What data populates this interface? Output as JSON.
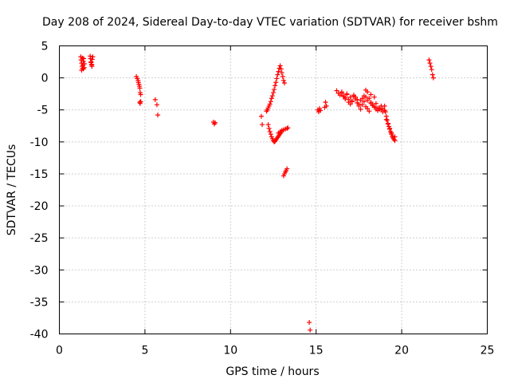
{
  "chart_data": {
    "type": "scatter",
    "title": "Day 208 of 2024, Sidereal Day-to-day VTEC variation (SDTVAR) for receiver bshm",
    "xlabel": "GPS time / hours",
    "ylabel": "SDTVAR / TECUs",
    "xlim": [
      0,
      25
    ],
    "ylim": [
      -40,
      5
    ],
    "xticks": [
      0,
      5,
      10,
      15,
      20,
      25
    ],
    "yticks": [
      5,
      0,
      -5,
      -10,
      -15,
      -20,
      -25,
      -30,
      -35,
      -40
    ],
    "grid": true,
    "marker": "+",
    "color": "#ff0000",
    "series": [
      {
        "name": "SDTVAR",
        "x": [
          1.25,
          1.27,
          1.3,
          1.32,
          1.35,
          1.38,
          1.4,
          1.42,
          1.45,
          1.47,
          1.3,
          1.35,
          1.4,
          1.8,
          1.82,
          1.85,
          1.88,
          1.9,
          1.92,
          1.95,
          1.85,
          1.9,
          4.5,
          4.55,
          4.6,
          4.62,
          4.65,
          4.68,
          4.7,
          4.72,
          4.75,
          4.7,
          4.72,
          4.75,
          5.6,
          5.7,
          5.75,
          9.0,
          9.05,
          9.1,
          11.8,
          11.85,
          12.1,
          12.15,
          12.2,
          12.25,
          12.3,
          12.35,
          12.4,
          12.45,
          12.5,
          12.55,
          12.6,
          12.65,
          12.7,
          12.75,
          12.8,
          12.85,
          12.9,
          12.95,
          13.0,
          13.05,
          13.1,
          13.15,
          12.2,
          12.25,
          12.3,
          12.35,
          12.4,
          12.45,
          12.5,
          12.55,
          12.6,
          12.65,
          12.7,
          12.75,
          12.8,
          12.85,
          12.9,
          12.95,
          13.0,
          12.8,
          12.9,
          13.0,
          13.1,
          13.2,
          13.3,
          13.35,
          13.1,
          13.15,
          13.2,
          13.25,
          13.3,
          14.6,
          14.65,
          15.1,
          15.15,
          15.2,
          15.25,
          15.5,
          15.55,
          15.6,
          16.2,
          16.3,
          16.4,
          16.5,
          16.6,
          16.7,
          16.8,
          16.9,
          17.0,
          17.1,
          17.2,
          17.3,
          17.4,
          17.5,
          17.6,
          17.7,
          17.8,
          17.9,
          18.0,
          18.1,
          18.2,
          18.3,
          18.4,
          18.5,
          18.6,
          18.7,
          18.8,
          18.9,
          16.5,
          16.6,
          16.7,
          16.8,
          16.9,
          17.0,
          17.1,
          17.2,
          17.3,
          17.4,
          17.5,
          17.6,
          17.7,
          17.8,
          17.9,
          18.0,
          18.1,
          18.2,
          18.3,
          18.4,
          18.5,
          18.6,
          18.7,
          18.8,
          18.9,
          19.0,
          17.9,
          18.0,
          18.2,
          18.4,
          19.0,
          19.05,
          19.1,
          19.15,
          19.2,
          19.25,
          19.3,
          19.35,
          19.4,
          19.45,
          19.5,
          19.55,
          19.6,
          19.1,
          19.2,
          19.3,
          19.4,
          19.5,
          19.6,
          21.6,
          21.65,
          21.7,
          21.75,
          21.8,
          21.85
        ],
        "y": [
          3.3,
          2.8,
          2.3,
          1.8,
          1.5,
          2.0,
          2.6,
          3.0,
          1.6,
          2.2,
          1.2,
          3.1,
          1.4,
          3.4,
          3.0,
          2.5,
          2.1,
          1.8,
          2.9,
          3.3,
          2.4,
          2.0,
          0.2,
          -0.1,
          -0.4,
          -0.7,
          -1.0,
          -1.3,
          -1.6,
          -2.3,
          -2.6,
          -3.8,
          -4.0,
          -3.7,
          -3.4,
          -4.2,
          -5.8,
          -6.9,
          -7.2,
          -7.0,
          -6.0,
          -7.3,
          -5.2,
          -5.0,
          -4.7,
          -4.4,
          -4.1,
          -3.7,
          -3.2,
          -2.8,
          -2.3,
          -1.8,
          -1.2,
          -0.7,
          -0.1,
          0.5,
          1.0,
          1.5,
          1.9,
          1.4,
          0.8,
          0.2,
          -0.4,
          -0.8,
          -7.3,
          -7.9,
          -8.4,
          -8.8,
          -9.2,
          -9.5,
          -9.8,
          -10.0,
          -9.9,
          -9.7,
          -9.5,
          -9.3,
          -9.1,
          -8.9,
          -8.7,
          -8.5,
          -8.3,
          -8.6,
          -8.4,
          -8.2,
          -8.1,
          -8.0,
          -7.9,
          -7.8,
          -15.3,
          -15.0,
          -14.7,
          -14.5,
          -14.2,
          -38.2,
          -39.4,
          -5.0,
          -5.3,
          -4.8,
          -5.1,
          -4.6,
          -3.8,
          -4.4,
          -2.0,
          -2.4,
          -2.7,
          -2.2,
          -2.9,
          -3.3,
          -2.5,
          -3.8,
          -4.1,
          -3.6,
          -2.7,
          -3.0,
          -3.4,
          -4.4,
          -4.9,
          -4.2,
          -3.7,
          -4.5,
          -4.8,
          -5.2,
          -4.0,
          -4.3,
          -4.6,
          -4.9,
          -5.1,
          -4.7,
          -5.0,
          -5.3,
          -2.4,
          -2.8,
          -3.1,
          -2.6,
          -3.4,
          -3.0,
          -3.7,
          -2.9,
          -3.3,
          -3.9,
          -4.1,
          -3.5,
          -3.2,
          -2.8,
          -3.0,
          -3.5,
          -3.2,
          -3.8,
          -4.2,
          -4.5,
          -4.0,
          -4.7,
          -4.9,
          -4.4,
          -4.8,
          -5.1,
          -1.9,
          -2.2,
          -2.6,
          -3.0,
          -4.4,
          -5.3,
          -6.0,
          -6.6,
          -7.1,
          -7.6,
          -8.0,
          -8.4,
          -8.8,
          -9.1,
          -9.4,
          -9.6,
          -9.2,
          -6.5,
          -7.2,
          -7.9,
          -8.6,
          -9.3,
          -9.8,
          2.8,
          2.3,
          1.8,
          1.3,
          0.5,
          0.0
        ]
      }
    ]
  }
}
